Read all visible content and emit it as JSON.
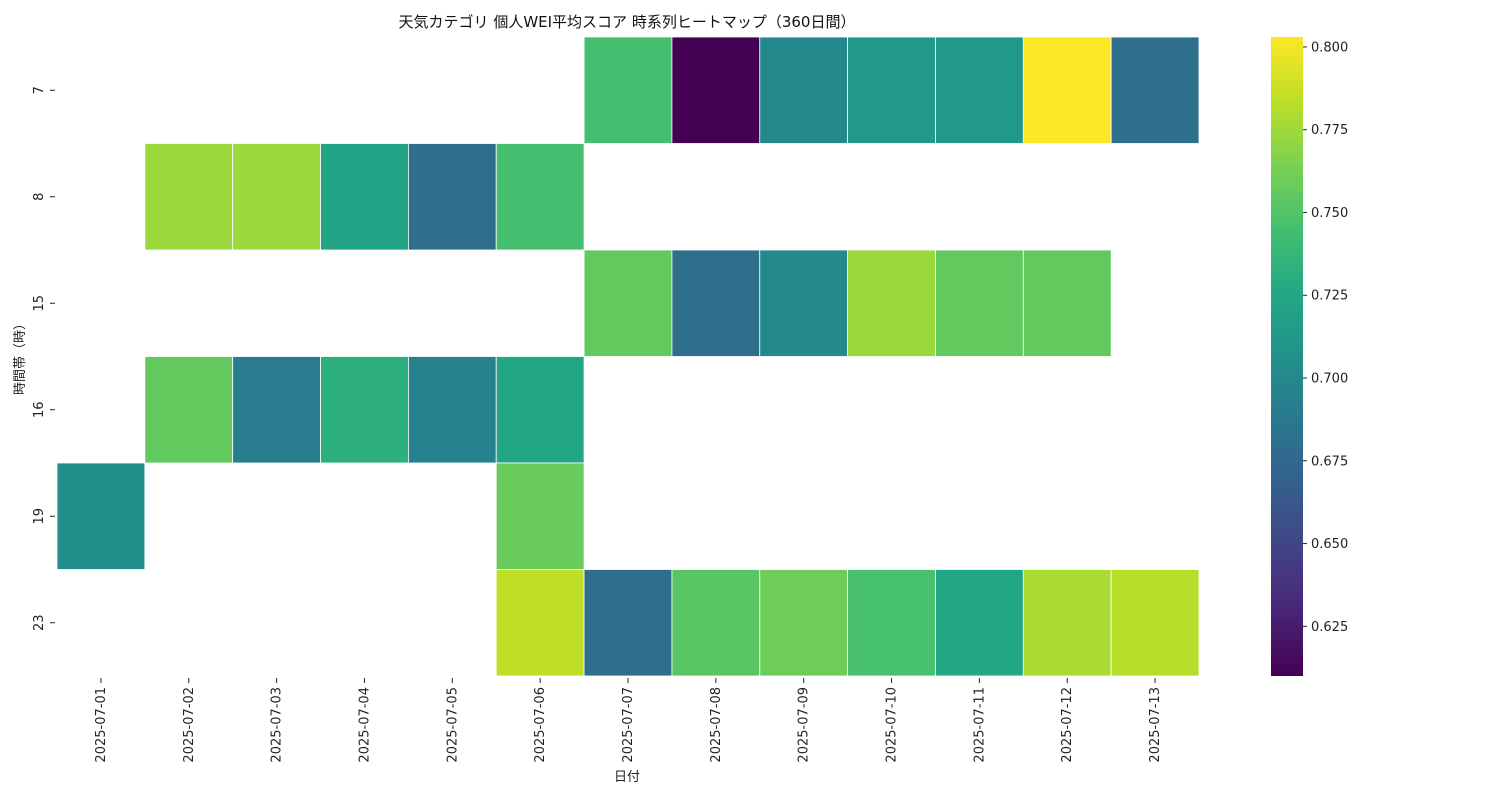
{
  "chart_data": {
    "type": "heatmap",
    "title": "天気カテゴリ 個人WEI平均スコア 時系列ヒートマップ（360日間）",
    "xlabel": "日付",
    "ylabel": "時間帯（時）",
    "x": [
      "2025-07-01",
      "2025-07-02",
      "2025-07-03",
      "2025-07-04",
      "2025-07-05",
      "2025-07-06",
      "2025-07-07",
      "2025-07-08",
      "2025-07-09",
      "2025-07-10",
      "2025-07-11",
      "2025-07-12",
      "2025-07-13"
    ],
    "y": [
      "7",
      "8",
      "15",
      "16",
      "19",
      "23"
    ],
    "values": [
      [
        null,
        null,
        null,
        null,
        null,
        null,
        0.745,
        0.61,
        0.7,
        0.712,
        0.712,
        0.803,
        0.68
      ],
      [
        null,
        0.774,
        0.774,
        0.722,
        0.68,
        0.745,
        null,
        null,
        null,
        null,
        null,
        null,
        null
      ],
      [
        null,
        null,
        null,
        null,
        null,
        null,
        0.756,
        0.68,
        0.7,
        0.774,
        0.756,
        0.756,
        null
      ],
      [
        null,
        0.756,
        0.69,
        0.732,
        0.695,
        0.725,
        null,
        null,
        null,
        null,
        null,
        null,
        null
      ],
      [
        0.706,
        null,
        null,
        null,
        null,
        0.758,
        null,
        null,
        null,
        null,
        null,
        null,
        null
      ],
      [
        null,
        null,
        null,
        null,
        null,
        0.784,
        0.68,
        0.753,
        0.76,
        0.746,
        0.725,
        0.778,
        0.782
      ]
    ],
    "vmin": 0.61,
    "vmax": 0.803,
    "colormap": "viridis",
    "colorbar_ticks": [
      "0.625",
      "0.650",
      "0.675",
      "0.700",
      "0.725",
      "0.750",
      "0.775",
      "0.800"
    ]
  }
}
